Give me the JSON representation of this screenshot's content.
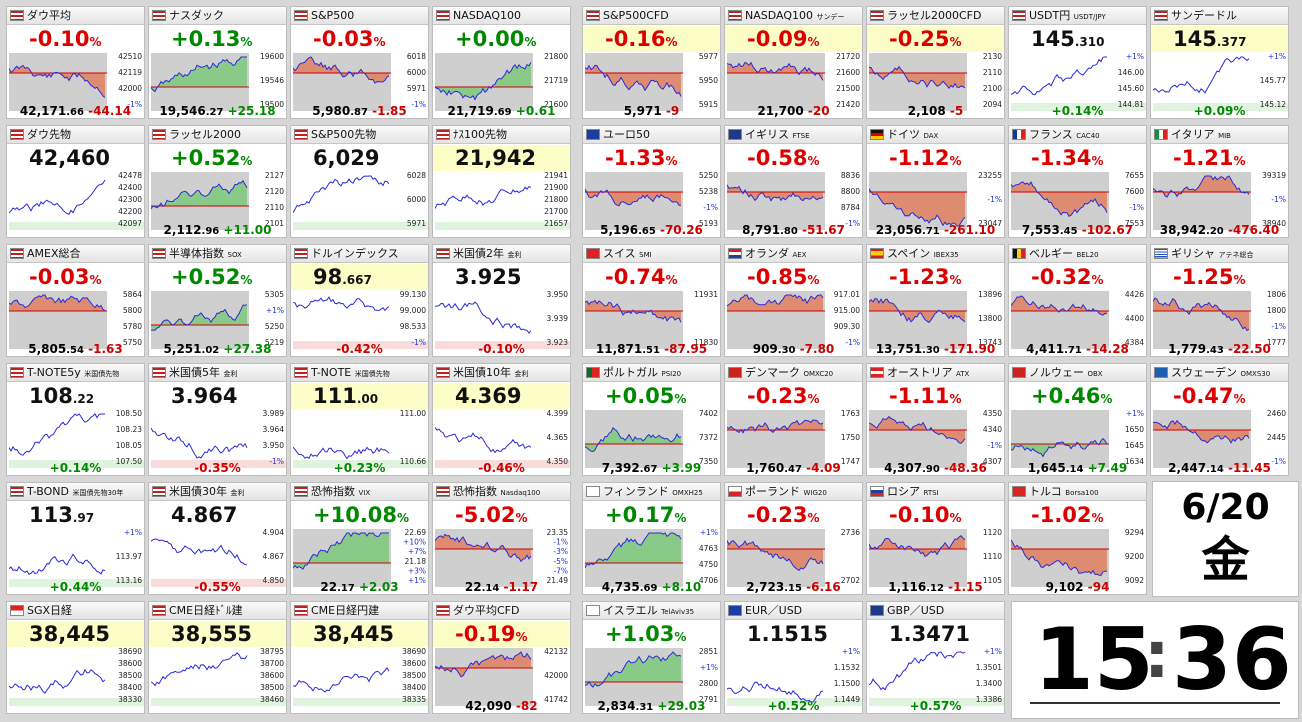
{
  "tiles": [
    {
      "c": 0,
      "r": 0,
      "flag": "us",
      "name": "ダウ平均",
      "sub": "",
      "change": "-0.10",
      "bar": "",
      "ylabels": [
        "42510",
        "42119",
        "42000",
        "-1%"
      ],
      "price": "42,171",
      "dec": ".66",
      "diff": "-44.14",
      "dir": "d"
    },
    {
      "c": 1,
      "r": 0,
      "flag": "us",
      "name": "ナスダック",
      "sub": "",
      "change": "+0.13",
      "bar": "",
      "ylabels": [
        "19600",
        "19546",
        "19500"
      ],
      "price": "19,546",
      "dec": ".27",
      "diff": "+25.18",
      "dir": "u"
    },
    {
      "c": 2,
      "r": 0,
      "flag": "us",
      "name": "S&P500",
      "sub": "",
      "change": "-0.03",
      "bar": "",
      "ylabels": [
        "6018",
        "6000",
        "5971",
        "-1%"
      ],
      "price": "5,980",
      "dec": ".87",
      "diff": "-1.85",
      "dir": "d"
    },
    {
      "c": 3,
      "r": 0,
      "flag": "us",
      "name": "NASDAQ100",
      "sub": "",
      "change": "+0.00",
      "bar": "",
      "ylabels": [
        "21800",
        "21719",
        "21600"
      ],
      "price": "21,719",
      "dec": ".69",
      "diff": "+0.61",
      "dir": "u"
    },
    {
      "c": 4,
      "r": 0,
      "flag": "us",
      "name": "S&P500CFD",
      "sub": "",
      "change": "-0.16",
      "bar": "",
      "ylabels": [
        "5977",
        "5950",
        "5915"
      ],
      "price": "5,971",
      "dec": "",
      "diff": "-9",
      "dir": "d",
      "hl": true
    },
    {
      "c": 5,
      "r": 0,
      "flag": "us",
      "name": "NASDAQ100",
      "sub": "サンデー",
      "change": "-0.09",
      "bar": "",
      "ylabels": [
        "21720",
        "21600",
        "21500",
        "21420"
      ],
      "price": "21,700",
      "dec": "",
      "diff": "-20",
      "dir": "d",
      "hl": true
    },
    {
      "c": 6,
      "r": 0,
      "flag": "us",
      "name": "ラッセル2000CFD",
      "sub": "",
      "change": "-0.25",
      "bar": "",
      "ylabels": [
        "2130",
        "2110",
        "2100",
        "2094"
      ],
      "price": "2,108",
      "dec": "",
      "diff": "-5",
      "dir": "d",
      "hl": true
    },
    {
      "c": 7,
      "r": 0,
      "flag": "us",
      "name": "USDT円",
      "sub": "USDT/JPY",
      "change": "",
      "bigval": "145",
      "bigdec": ".310",
      "ylabels": [
        "+1%",
        "146.00",
        "145.60",
        "144.81"
      ],
      "price": "",
      "dec": "",
      "diff": "",
      "pctfoot": "+0.14%",
      "dir": "u"
    },
    {
      "c": 8,
      "r": 0,
      "flag": "us",
      "name": "サンデードル",
      "sub": "",
      "change": "",
      "bigval": "145",
      "bigdec": ".377",
      "ylabels": [
        "+1%",
        "145.77",
        "145.12"
      ],
      "price": "",
      "dec": "",
      "diff": "",
      "pctfoot": "+0.09%",
      "dir": "u",
      "hl": true
    },
    {
      "c": 0,
      "r": 1,
      "flag": "us",
      "name": "ダウ先物",
      "sub": "",
      "change": "",
      "bigval": "42,460",
      "bigdec": "",
      "ylabels": [
        "42478",
        "42400",
        "42300",
        "42200",
        "42097"
      ],
      "price": "",
      "dec": "",
      "diff": "",
      "dir": "u"
    },
    {
      "c": 1,
      "r": 1,
      "flag": "us",
      "name": "ラッセル2000",
      "sub": "",
      "change": "+0.52",
      "bar": "",
      "ylabels": [
        "2127",
        "2120",
        "2110",
        "2101"
      ],
      "price": "2,112",
      "dec": ".96",
      "diff": "+11.00",
      "dir": "u"
    },
    {
      "c": 2,
      "r": 1,
      "flag": "us",
      "name": "S&P500先物",
      "sub": "",
      "change": "",
      "bigval": "6,029",
      "bigdec": "",
      "ylabels": [
        "6028",
        "6000",
        "5971"
      ],
      "price": "",
      "dec": "",
      "diff": "",
      "dir": "u"
    },
    {
      "c": 3,
      "r": 1,
      "flag": "us",
      "name": "ﾅｽ100先物",
      "sub": "",
      "change": "",
      "bigval": "21,942",
      "bigdec": "",
      "ylabels": [
        "21941",
        "21900",
        "21800",
        "21700",
        "21657"
      ],
      "price": "",
      "dec": "",
      "diff": "",
      "dir": "u",
      "hl": true
    },
    {
      "c": 4,
      "r": 1,
      "flag": "eu",
      "name": "ユーロ50",
      "sub": "",
      "change": "-1.33",
      "bar": "",
      "ylabels": [
        "5250",
        "5238",
        "-1%",
        "5193"
      ],
      "price": "5,196",
      "dec": ".65",
      "diff": "-70.26",
      "dir": "d"
    },
    {
      "c": 5,
      "r": 1,
      "flag": "uk",
      "name": "イギリス",
      "sub": "FTSE",
      "change": "-0.58",
      "bar": "",
      "ylabels": [
        "8836",
        "8800",
        "8784",
        "-1%"
      ],
      "price": "8,791",
      "dec": ".80",
      "diff": "-51.67",
      "dir": "d"
    },
    {
      "c": 6,
      "r": 1,
      "flag": "de",
      "name": "ドイツ",
      "sub": "DAX",
      "change": "-1.12",
      "bar": "",
      "ylabels": [
        "23255",
        "-1%",
        "23047"
      ],
      "price": "23,056",
      "dec": ".71",
      "diff": "-261.10",
      "dir": "d"
    },
    {
      "c": 7,
      "r": 1,
      "flag": "fr",
      "name": "フランス",
      "sub": "CAC40",
      "change": "-1.34",
      "bar": "",
      "ylabels": [
        "7655",
        "7600",
        "-1%",
        "7553"
      ],
      "price": "7,553",
      "dec": ".45",
      "diff": "-102.67",
      "dir": "d"
    },
    {
      "c": 8,
      "r": 1,
      "flag": "it",
      "name": "イタリア",
      "sub": "MIB",
      "change": "-1.21",
      "bar": "",
      "ylabels": [
        "39319",
        "-1%",
        "38940"
      ],
      "price": "38,942",
      "dec": ".20",
      "diff": "-476.40",
      "dir": "d"
    },
    {
      "c": 0,
      "r": 2,
      "flag": "us",
      "name": "AMEX総合",
      "sub": "",
      "change": "-0.03",
      "bar": "",
      "ylabels": [
        "5864",
        "5800",
        "5780",
        "5750"
      ],
      "price": "5,805",
      "dec": ".54",
      "diff": "-1.63",
      "dir": "d"
    },
    {
      "c": 1,
      "r": 2,
      "flag": "us",
      "name": "半導体指数",
      "sub": "SOX",
      "change": "+0.52",
      "bar": "",
      "ylabels": [
        "5305",
        "+1%",
        "5250",
        "5219"
      ],
      "price": "5,251",
      "dec": ".02",
      "diff": "+27.38",
      "dir": "u"
    },
    {
      "c": 2,
      "r": 2,
      "flag": "us",
      "name": "ドルインデックス",
      "sub": "",
      "change": "",
      "bigval": "98",
      "bigdec": ".667",
      "ylabels": [
        "99.130",
        "99.000",
        "98.533",
        "-1%"
      ],
      "price": "",
      "dec": "",
      "diff": "",
      "pctfoot": "-0.42%",
      "dir": "d",
      "hl": true
    },
    {
      "c": 3,
      "r": 2,
      "flag": "us",
      "name": "米国債2年",
      "sub": "金利",
      "change": "",
      "bigval": "3.925",
      "bigdec": "",
      "ylabels": [
        "3.950",
        "3.939",
        "3.923"
      ],
      "price": "",
      "dec": "",
      "diff": "",
      "pctfoot": "-0.10%",
      "dir": "d"
    },
    {
      "c": 4,
      "r": 2,
      "flag": "ch",
      "name": "スイス",
      "sub": "SMI",
      "change": "-0.74",
      "bar": "",
      "ylabels": [
        "11931",
        "11830"
      ],
      "price": "11,871",
      "dec": ".51",
      "diff": "-87.95",
      "dir": "d"
    },
    {
      "c": 5,
      "r": 2,
      "flag": "nl",
      "name": "オランダ",
      "sub": "AEX",
      "change": "-0.85",
      "bar": "",
      "ylabels": [
        "917.01",
        "915.00",
        "909.30",
        "-1%"
      ],
      "price": "909",
      "dec": ".30",
      "diff": "-7.80",
      "dir": "d"
    },
    {
      "c": 6,
      "r": 2,
      "flag": "es",
      "name": "スペイン",
      "sub": "IBEX35",
      "change": "-1.23",
      "bar": "",
      "ylabels": [
        "13896",
        "13800",
        "13743"
      ],
      "price": "13,751",
      "dec": ".30",
      "diff": "-171.90",
      "dir": "d"
    },
    {
      "c": 7,
      "r": 2,
      "flag": "be",
      "name": "ベルギー",
      "sub": "BEL20",
      "change": "-0.32",
      "bar": "",
      "ylabels": [
        "4426",
        "4400",
        "4384"
      ],
      "price": "4,411",
      "dec": ".71",
      "diff": "-14.28",
      "dir": "d"
    },
    {
      "c": 8,
      "r": 2,
      "flag": "gr",
      "name": "ギリシャ",
      "sub": "アテネ総合",
      "change": "-1.25",
      "bar": "",
      "ylabels": [
        "1806",
        "1800",
        "-1%",
        "1777"
      ],
      "price": "1,779",
      "dec": ".43",
      "diff": "-22.50",
      "dir": "d"
    },
    {
      "c": 0,
      "r": 3,
      "flag": "us",
      "name": "T-NOTE5y",
      "sub": "米国債先物",
      "change": "",
      "bigval": "108",
      "bigdec": ".22",
      "ylabels": [
        "108.50",
        "108.23",
        "108.05",
        "107.50"
      ],
      "price": "",
      "dec": "",
      "diff": "",
      "pctfoot": "+0.14%",
      "dir": "u"
    },
    {
      "c": 1,
      "r": 3,
      "flag": "us",
      "name": "米国債5年",
      "sub": "金利",
      "change": "",
      "bigval": "3.964",
      "bigdec": "",
      "ylabels": [
        "3.989",
        "3.964",
        "3.950",
        "-1%"
      ],
      "price": "",
      "dec": "",
      "diff": "",
      "pctfoot": "-0.35%",
      "dir": "d"
    },
    {
      "c": 2,
      "r": 3,
      "flag": "us",
      "name": "T-NOTE",
      "sub": "米国債先物",
      "change": "",
      "bigval": "111",
      "bigdec": ".00",
      "ylabels": [
        "111.00",
        "110.66"
      ],
      "price": "",
      "dec": "",
      "diff": "",
      "pctfoot": "+0.23%",
      "dir": "u",
      "hl": true
    },
    {
      "c": 3,
      "r": 3,
      "flag": "us",
      "name": "米国債10年",
      "sub": "金利",
      "change": "",
      "bigval": "4.369",
      "bigdec": "",
      "ylabels": [
        "4.399",
        "4.365",
        "4.350"
      ],
      "price": "",
      "dec": "",
      "diff": "",
      "pctfoot": "-0.46%",
      "dir": "d",
      "hl": true
    },
    {
      "c": 4,
      "r": 3,
      "flag": "pt",
      "name": "ポルトガル",
      "sub": "PSI20",
      "change": "+0.05",
      "bar": "",
      "ylabels": [
        "7402",
        "7372",
        "7350"
      ],
      "price": "7,392",
      "dec": ".67",
      "diff": "+3.99",
      "dir": "u"
    },
    {
      "c": 5,
      "r": 3,
      "flag": "dk",
      "name": "デンマーク",
      "sub": "OMXC20",
      "change": "-0.23",
      "bar": "",
      "ylabels": [
        "1763",
        "1750",
        "1747"
      ],
      "price": "1,760",
      "dec": ".47",
      "diff": "-4.09",
      "dir": "d"
    },
    {
      "c": 6,
      "r": 3,
      "flag": "at",
      "name": "オーストリア",
      "sub": "ATX",
      "change": "-1.11",
      "bar": "",
      "ylabels": [
        "4350",
        "4340",
        "-1%",
        "4307"
      ],
      "price": "4,307",
      "dec": ".90",
      "diff": "-48.36",
      "dir": "d"
    },
    {
      "c": 7,
      "r": 3,
      "flag": "no",
      "name": "ノルウェー",
      "sub": "OBX",
      "change": "+0.46",
      "bar": "",
      "ylabels": [
        "+1%",
        "1650",
        "1645",
        "1634"
      ],
      "price": "1,645",
      "dec": ".14",
      "diff": "+7.49",
      "dir": "u"
    },
    {
      "c": 8,
      "r": 3,
      "flag": "se",
      "name": "スウェーデン",
      "sub": "OMXS30",
      "change": "-0.47",
      "bar": "",
      "ylabels": [
        "2460",
        "2445",
        "-1%"
      ],
      "price": "2,447",
      "dec": ".14",
      "diff": "-11.45",
      "dir": "d"
    },
    {
      "c": 0,
      "r": 4,
      "flag": "us",
      "name": "T-BOND",
      "sub": "米国債先物30年",
      "change": "",
      "bigval": "113",
      "bigdec": ".97",
      "ylabels": [
        "+1%",
        "113.97",
        "113.16"
      ],
      "price": "",
      "dec": "",
      "diff": "",
      "pctfoot": "+0.44%",
      "dir": "u"
    },
    {
      "c": 1,
      "r": 4,
      "flag": "us",
      "name": "米国債30年",
      "sub": "金利",
      "change": "",
      "bigval": "4.867",
      "bigdec": "",
      "ylabels": [
        "4.904",
        "4.867",
        "4.850"
      ],
      "price": "",
      "dec": "",
      "diff": "",
      "pctfoot": "-0.55%",
      "dir": "d"
    },
    {
      "c": 2,
      "r": 4,
      "flag": "us",
      "name": "恐怖指数",
      "sub": "VIX",
      "change": "+10.08",
      "bar": "",
      "ylabels": [
        "22.69",
        "+10%",
        "+7%",
        "21.18",
        "+3%",
        "+1%"
      ],
      "price": "22",
      "dec": ".17",
      "diff": "+2.03",
      "dir": "u"
    },
    {
      "c": 3,
      "r": 4,
      "flag": "us",
      "name": "恐怖指数",
      "sub": "Nasdaq100",
      "change": "-5.02",
      "bar": "",
      "ylabels": [
        "23.35",
        "-1%",
        "-3%",
        "-5%",
        "-7%",
        "21.49"
      ],
      "price": "22",
      "dec": ".14",
      "diff": "-1.17",
      "dir": "d"
    },
    {
      "c": 4,
      "r": 4,
      "flag": "fi",
      "name": "フィンランド",
      "sub": "OMXH25",
      "change": "+0.17",
      "bar": "",
      "ylabels": [
        "+1%",
        "4763",
        "4750",
        "4706"
      ],
      "price": "4,735",
      "dec": ".69",
      "diff": "+8.10",
      "dir": "u"
    },
    {
      "c": 5,
      "r": 4,
      "flag": "pl",
      "name": "ポーランド",
      "sub": "WIG20",
      "change": "-0.23",
      "bar": "",
      "ylabels": [
        "2736",
        "2702"
      ],
      "price": "2,723",
      "dec": ".15",
      "diff": "-6.16",
      "dir": "d"
    },
    {
      "c": 6,
      "r": 4,
      "flag": "ru",
      "name": "ロシア",
      "sub": "RTSI",
      "change": "-0.10",
      "bar": "",
      "ylabels": [
        "1120",
        "1110",
        "1105"
      ],
      "price": "1,116",
      "dec": ".12",
      "diff": "-1.15",
      "dir": "d"
    },
    {
      "c": 7,
      "r": 4,
      "flag": "tr",
      "name": "トルコ",
      "sub": "Borsa100",
      "change": "-1.02",
      "bar": "",
      "ylabels": [
        "9294",
        "9200",
        "9092"
      ],
      "price": "9,102",
      "dec": "",
      "diff": "-94",
      "dir": "d"
    },
    {
      "c": 0,
      "r": 5,
      "flag": "sg",
      "name": "SGX日経",
      "sub": "",
      "change": "",
      "bigval": "38,445",
      "bigdec": "",
      "ylabels": [
        "38690",
        "38600",
        "38500",
        "38400",
        "38330"
      ],
      "price": "",
      "dec": "",
      "diff": "",
      "dir": "u",
      "hl": true
    },
    {
      "c": 1,
      "r": 5,
      "flag": "us",
      "name": "CME日経ﾄﾞﾙ建",
      "sub": "",
      "change": "",
      "bigval": "38,555",
      "bigdec": "",
      "ylabels": [
        "38795",
        "38700",
        "38600",
        "38500",
        "38460"
      ],
      "price": "",
      "dec": "",
      "diff": "",
      "dir": "u",
      "hl": true
    },
    {
      "c": 2,
      "r": 5,
      "flag": "us",
      "name": "CME日経円建",
      "sub": "",
      "change": "",
      "bigval": "38,445",
      "bigdec": "",
      "ylabels": [
        "38690",
        "38600",
        "38500",
        "38400",
        "38335"
      ],
      "price": "",
      "dec": "",
      "diff": "",
      "dir": "u",
      "hl": true
    },
    {
      "c": 3,
      "r": 5,
      "flag": "us",
      "name": "ダウ平均CFD",
      "sub": "",
      "change": "-0.19",
      "bar": "",
      "ylabels": [
        "42132",
        "42000",
        "41742"
      ],
      "price": "42,090",
      "dec": "",
      "diff": "-82",
      "dir": "d",
      "hl": true
    },
    {
      "c": 4,
      "r": 5,
      "flag": "il",
      "name": "イスラエル",
      "sub": "TelAviv35",
      "change": "+1.03",
      "bar": "",
      "ylabels": [
        "2851",
        "+1%",
        "2800",
        "2791"
      ],
      "price": "2,834",
      "dec": ".31",
      "diff": "+29.03",
      "dir": "u"
    },
    {
      "c": 5,
      "r": 5,
      "flag": "eu",
      "name": "EUR／USD",
      "sub": "",
      "change": "",
      "bigval": "1.1515",
      "bigdec": "",
      "ylabels": [
        "+1%",
        "1.1532",
        "1.1500",
        "1.1449"
      ],
      "price": "",
      "dec": "",
      "diff": "",
      "pctfoot": "+0.52%",
      "dir": "u"
    },
    {
      "c": 6,
      "r": 5,
      "flag": "uk",
      "name": "GBP／USD",
      "sub": "",
      "change": "",
      "bigval": "1.3471",
      "bigdec": "",
      "ylabels": [
        "+1%",
        "1.3501",
        "1.3400",
        "1.3386"
      ],
      "price": "",
      "dec": "",
      "diff": "",
      "pctfoot": "+0.57%",
      "dir": "u"
    }
  ],
  "date": {
    "md": "6/20",
    "weekday": "金"
  },
  "clock": {
    "hh": "15",
    "mm": "36",
    "sep": ":"
  },
  "colors": {
    "up": "#008800",
    "down": "#dd0000",
    "upfill": "#7cc97c",
    "downfill": "#e08060",
    "highlight": "#fdfdc8",
    "line": "#2b2bd6"
  }
}
